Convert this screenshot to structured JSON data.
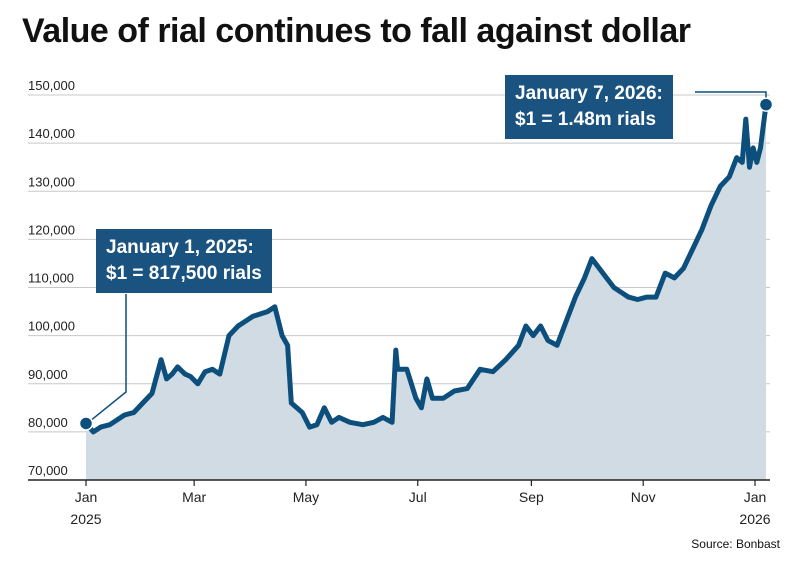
{
  "title": "Value of rial continues to fall against dollar",
  "source": "Source: Bonbast",
  "colors": {
    "line": "#0c4f7d",
    "area": "#d0dbe4",
    "callout_bg": "#1a5280",
    "grid": "#c8c8c8"
  },
  "annotations": [
    {
      "line1": "January 1, 2025:",
      "line2": "$1 = 817,500 rials"
    },
    {
      "line1": "January 7, 2026:",
      "line2": "$1 = 1.48m rials"
    }
  ],
  "chart_data": {
    "type": "area",
    "title": "Value of rial continues to fall against dollar",
    "xlabel": "",
    "ylabel": "",
    "ylim": [
      70000,
      150000
    ],
    "y_ticks": [
      70000,
      80000,
      90000,
      100000,
      110000,
      120000,
      130000,
      140000,
      150000
    ],
    "y_tick_labels": [
      "70,000",
      "80,000",
      "90,000",
      "100,000",
      "110,000",
      "120,000",
      "130,000",
      "140,000",
      "150,000"
    ],
    "x_ticks": [
      "2025-01-01",
      "2025-03-01",
      "2025-05-01",
      "2025-07-01",
      "2025-09-01",
      "2025-11-01",
      "2026-01-01"
    ],
    "x_tick_labels": [
      [
        "Jan",
        "2025"
      ],
      [
        "Mar",
        ""
      ],
      [
        "May",
        ""
      ],
      [
        "Jul",
        ""
      ],
      [
        "Sep",
        ""
      ],
      [
        "Nov",
        ""
      ],
      [
        "Jan",
        "2026"
      ]
    ],
    "x_range": [
      "2025-01-01",
      "2026-01-07"
    ],
    "grid": true,
    "series": [
      {
        "x": [
          "2025-01-01",
          "2025-01-05",
          "2025-01-09",
          "2025-01-14",
          "2025-01-18",
          "2025-01-22",
          "2025-01-27",
          "2025-02-01",
          "2025-02-06",
          "2025-02-11",
          "2025-02-14",
          "2025-02-17",
          "2025-02-20",
          "2025-02-24",
          "2025-02-27",
          "2025-03-03",
          "2025-03-07",
          "2025-03-11",
          "2025-03-15",
          "2025-03-20",
          "2025-03-25",
          "2025-03-29",
          "2025-04-02",
          "2025-04-06",
          "2025-04-10",
          "2025-04-14",
          "2025-04-18",
          "2025-04-21",
          "2025-04-23",
          "2025-04-26",
          "2025-04-29",
          "2025-05-03",
          "2025-05-07",
          "2025-05-11",
          "2025-05-15",
          "2025-05-19",
          "2025-05-25",
          "2025-06-01",
          "2025-06-07",
          "2025-06-12",
          "2025-06-17",
          "2025-06-19",
          "2025-06-20",
          "2025-06-25",
          "2025-06-30",
          "2025-07-03",
          "2025-07-06",
          "2025-07-09",
          "2025-07-15",
          "2025-07-21",
          "2025-07-28",
          "2025-08-04",
          "2025-08-11",
          "2025-08-18",
          "2025-08-25",
          "2025-08-29",
          "2025-09-02",
          "2025-09-06",
          "2025-09-10",
          "2025-09-15",
          "2025-09-20",
          "2025-09-25",
          "2025-09-30",
          "2025-10-04",
          "2025-10-08",
          "2025-10-12",
          "2025-10-16",
          "2025-10-20",
          "2025-10-24",
          "2025-10-29",
          "2025-11-03",
          "2025-11-08",
          "2025-11-13",
          "2025-11-18",
          "2025-11-23",
          "2025-11-28",
          "2025-12-03",
          "2025-12-08",
          "2025-12-13",
          "2025-12-18",
          "2025-12-22",
          "2025-12-25",
          "2025-12-27",
          "2025-12-29",
          "2025-12-31",
          "2026-01-02",
          "2026-01-04",
          "2026-01-07"
        ],
        "values": [
          81750,
          80000,
          81000,
          81500,
          82500,
          83500,
          84000,
          86000,
          88000,
          95000,
          91000,
          92000,
          93500,
          92000,
          91500,
          90000,
          92500,
          93000,
          92000,
          100000,
          102000,
          103000,
          104000,
          104500,
          105000,
          106000,
          100000,
          98000,
          86000,
          85000,
          84000,
          81000,
          81500,
          85000,
          82000,
          83000,
          82000,
          81500,
          82000,
          83000,
          82000,
          97000,
          93000,
          93000,
          87000,
          85000,
          91000,
          87000,
          87000,
          88500,
          89000,
          93000,
          92500,
          95000,
          98000,
          102000,
          100000,
          102000,
          99000,
          98000,
          103000,
          108000,
          112000,
          116000,
          114000,
          112000,
          110000,
          109000,
          108000,
          107500,
          108000,
          108000,
          113000,
          112000,
          114000,
          118000,
          122000,
          127000,
          131000,
          133000,
          137000,
          136000,
          145000,
          135000,
          139000,
          136000,
          139000,
          148000
        ]
      }
    ]
  }
}
